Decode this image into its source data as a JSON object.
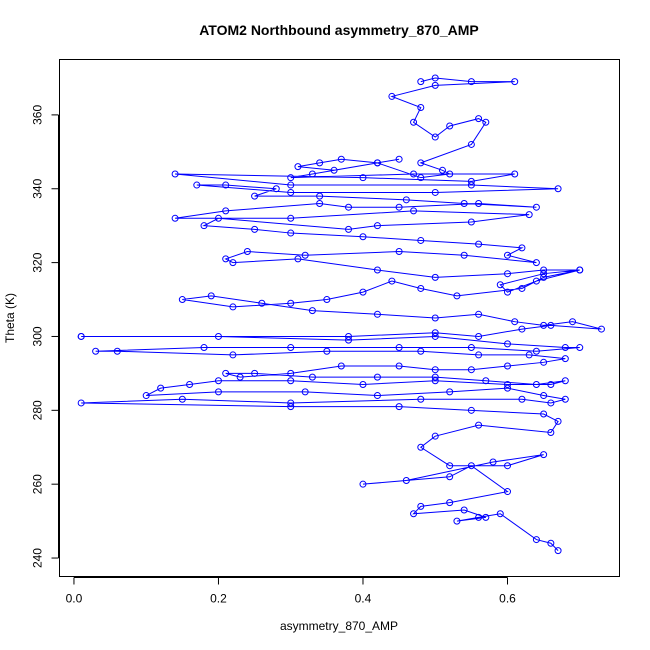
{
  "chart_data": {
    "type": "line",
    "title": "ATOM2 Northbound asymmetry_870_AMP",
    "xlabel": "asymmetry_870_AMP",
    "ylabel": "Theta (K)",
    "xlim": [
      -0.02,
      0.755
    ],
    "ylim": [
      235,
      375
    ],
    "xticks": [
      0.0,
      0.2,
      0.4,
      0.6
    ],
    "xtick_labels": [
      "0.0",
      "0.2",
      "0.4",
      "0.6"
    ],
    "yticks": [
      240,
      260,
      280,
      300,
      320,
      340,
      360
    ],
    "ytick_labels": [
      "240",
      "260",
      "280",
      "300",
      "320",
      "340",
      "360"
    ],
    "grid": false,
    "legend": "none",
    "marker": "open-circle",
    "color": "#0000ff",
    "series": [
      {
        "x": [
          0.48,
          0.5,
          0.55,
          0.61,
          0.5,
          0.44,
          0.48,
          0.47,
          0.5,
          0.52,
          0.56,
          0.57,
          0.55,
          0.48,
          0.51,
          0.52,
          0.48,
          0.42,
          0.37,
          0.34,
          0.31,
          0.36,
          0.42,
          0.45,
          0.33,
          0.3,
          0.47,
          0.61,
          0.55,
          0.4,
          0.14,
          0.3,
          0.55,
          0.67,
          0.5,
          0.3,
          0.17,
          0.21,
          0.28,
          0.25,
          0.34,
          0.46,
          0.54,
          0.64,
          0.56,
          0.45,
          0.38,
          0.34,
          0.21,
          0.14,
          0.3,
          0.47,
          0.63,
          0.55,
          0.42,
          0.38,
          0.2,
          0.18,
          0.25,
          0.3,
          0.4,
          0.48,
          0.56,
          0.62,
          0.6,
          0.64,
          0.54,
          0.45,
          0.32,
          0.24,
          0.21,
          0.22,
          0.31,
          0.42,
          0.5,
          0.6,
          0.65,
          0.7,
          0.65,
          0.59,
          0.6,
          0.64,
          0.7,
          0.65,
          0.62,
          0.53,
          0.48,
          0.44,
          0.4,
          0.35,
          0.3,
          0.22,
          0.15,
          0.19,
          0.26,
          0.33,
          0.42,
          0.5,
          0.56,
          0.61,
          0.65,
          0.69,
          0.73,
          0.66,
          0.62,
          0.56,
          0.5,
          0.38,
          0.01,
          0.01,
          0.2,
          0.38,
          0.5,
          0.6,
          0.68,
          0.7,
          0.64,
          0.55,
          0.45,
          0.3,
          0.18,
          0.03,
          0.06,
          0.22,
          0.35,
          0.48,
          0.56,
          0.63,
          0.68,
          0.65,
          0.6,
          0.55,
          0.5,
          0.45,
          0.37,
          0.3,
          0.23,
          0.21,
          0.25,
          0.33,
          0.42,
          0.5,
          0.57,
          0.64,
          0.68,
          0.66,
          0.6,
          0.5,
          0.4,
          0.3,
          0.2,
          0.16,
          0.12,
          0.1,
          0.2,
          0.32,
          0.42,
          0.52,
          0.6,
          0.65,
          0.68,
          0.66,
          0.62,
          0.48,
          0.3,
          0.15,
          0.01,
          0.3,
          0.45,
          0.55,
          0.65,
          0.67,
          0.66,
          0.56,
          0.5,
          0.48,
          0.52,
          0.6,
          0.65,
          0.58,
          0.46,
          0.4,
          0.52,
          0.55,
          0.6,
          0.52,
          0.48,
          0.47,
          0.54,
          0.57,
          0.53,
          0.56,
          0.59,
          0.64,
          0.66,
          0.67
        ],
        "y": [
          369,
          370,
          369,
          369,
          368,
          365,
          362,
          358,
          354,
          357,
          359,
          358,
          352,
          347,
          345,
          344,
          343,
          347,
          348,
          347,
          346,
          345,
          347,
          348,
          344,
          343,
          344,
          344,
          342,
          343,
          344,
          341,
          341,
          340,
          339,
          339,
          341,
          341,
          340,
          338,
          338,
          337,
          336,
          335,
          336,
          335,
          335,
          336,
          334,
          332,
          332,
          334,
          333,
          331,
          330,
          329,
          332,
          330,
          329,
          328,
          327,
          326,
          325,
          324,
          322,
          320,
          322,
          323,
          322,
          323,
          321,
          320,
          321,
          318,
          316,
          317,
          318,
          318,
          317,
          314,
          312,
          315,
          318,
          316,
          313,
          311,
          313,
          315,
          312,
          310,
          309,
          308,
          310,
          311,
          309,
          307,
          306,
          305,
          306,
          304,
          303,
          304,
          302,
          303,
          302,
          300,
          301,
          300,
          300,
          300,
          300,
          299,
          300,
          298,
          297,
          297,
          296,
          297,
          297,
          297,
          297,
          296,
          296,
          295,
          296,
          296,
          295,
          295,
          294,
          293,
          292,
          291,
          291,
          292,
          292,
          290,
          289,
          290,
          290,
          289,
          289,
          289,
          288,
          287,
          288,
          287,
          287,
          288,
          287,
          288,
          288,
          287,
          286,
          284,
          285,
          285,
          284,
          285,
          286,
          284,
          283,
          282,
          283,
          283,
          282,
          283,
          282,
          281,
          281,
          280,
          279,
          277,
          274,
          276,
          273,
          270,
          265,
          265,
          268,
          266,
          261,
          260,
          262,
          265,
          258,
          255,
          254,
          252,
          253,
          251,
          250,
          251,
          252,
          245,
          244,
          242
        ]
      }
    ]
  }
}
